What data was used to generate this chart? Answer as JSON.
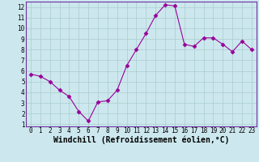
{
  "x": [
    0,
    1,
    2,
    3,
    4,
    5,
    6,
    7,
    8,
    9,
    10,
    11,
    12,
    13,
    14,
    15,
    16,
    17,
    18,
    19,
    20,
    21,
    22,
    23
  ],
  "y": [
    5.7,
    5.5,
    5.0,
    4.2,
    3.6,
    2.2,
    1.3,
    3.1,
    3.2,
    4.2,
    6.5,
    8.0,
    9.5,
    11.2,
    12.2,
    12.1,
    8.5,
    8.3,
    9.1,
    9.1,
    8.5,
    7.8,
    8.8,
    8.0
  ],
  "line_color": "#990099",
  "marker": "D",
  "markersize": 2.5,
  "linewidth": 0.8,
  "xlabel": "Windchill (Refroidissement éolien,°C)",
  "xlabel_fontsize": 7,
  "xlim": [
    -0.5,
    23.5
  ],
  "ylim_min": 0.8,
  "ylim_max": 12.5,
  "yticks": [
    1,
    2,
    3,
    4,
    5,
    6,
    7,
    8,
    9,
    10,
    11,
    12
  ],
  "xticks": [
    0,
    1,
    2,
    3,
    4,
    5,
    6,
    7,
    8,
    9,
    10,
    11,
    12,
    13,
    14,
    15,
    16,
    17,
    18,
    19,
    20,
    21,
    22,
    23
  ],
  "bg_color": "#cce8ee",
  "grid_color": "#aacccc",
  "tick_fontsize": 5.5,
  "spine_color": "#7030a0",
  "plot_border_color": "#7030a0"
}
